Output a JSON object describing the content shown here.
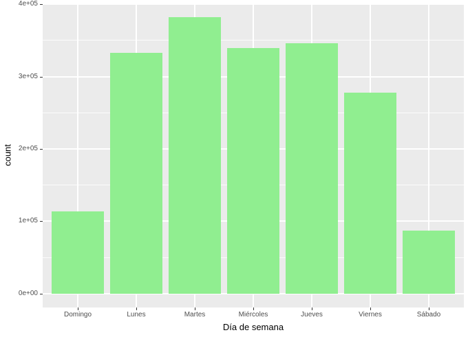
{
  "figure": {
    "background": "#FFFFFF",
    "panel_background": "#EBEBEB",
    "grid_color": "#FFFFFF",
    "bar_color": "#90EE90",
    "tick_label_color": "#4D4D4D",
    "axis_title_color": "#000000",
    "tick_mark_color": "#333333"
  },
  "chart_data": {
    "type": "bar",
    "title": "",
    "xlabel": "Día de semana",
    "ylabel": "count",
    "categories": [
      "Domingo",
      "Lunes",
      "Martes",
      "Miércoles",
      "Jueves",
      "Viernes",
      "Sábado"
    ],
    "values": [
      114000,
      333000,
      382000,
      339000,
      346000,
      278000,
      87000
    ],
    "ylim": [
      -19100,
      401100
    ],
    "y_major_ticks": [
      0,
      100000,
      200000,
      300000,
      400000
    ],
    "y_tick_labels": [
      "0e+00",
      "1e+05",
      "2e+05",
      "3e+05",
      "4e+05"
    ],
    "y_minor_ticks": [
      50000,
      150000,
      250000,
      350000
    ],
    "grid": true,
    "legend": false,
    "bar_width_fraction": 0.9,
    "category_expansion": 0.6
  }
}
